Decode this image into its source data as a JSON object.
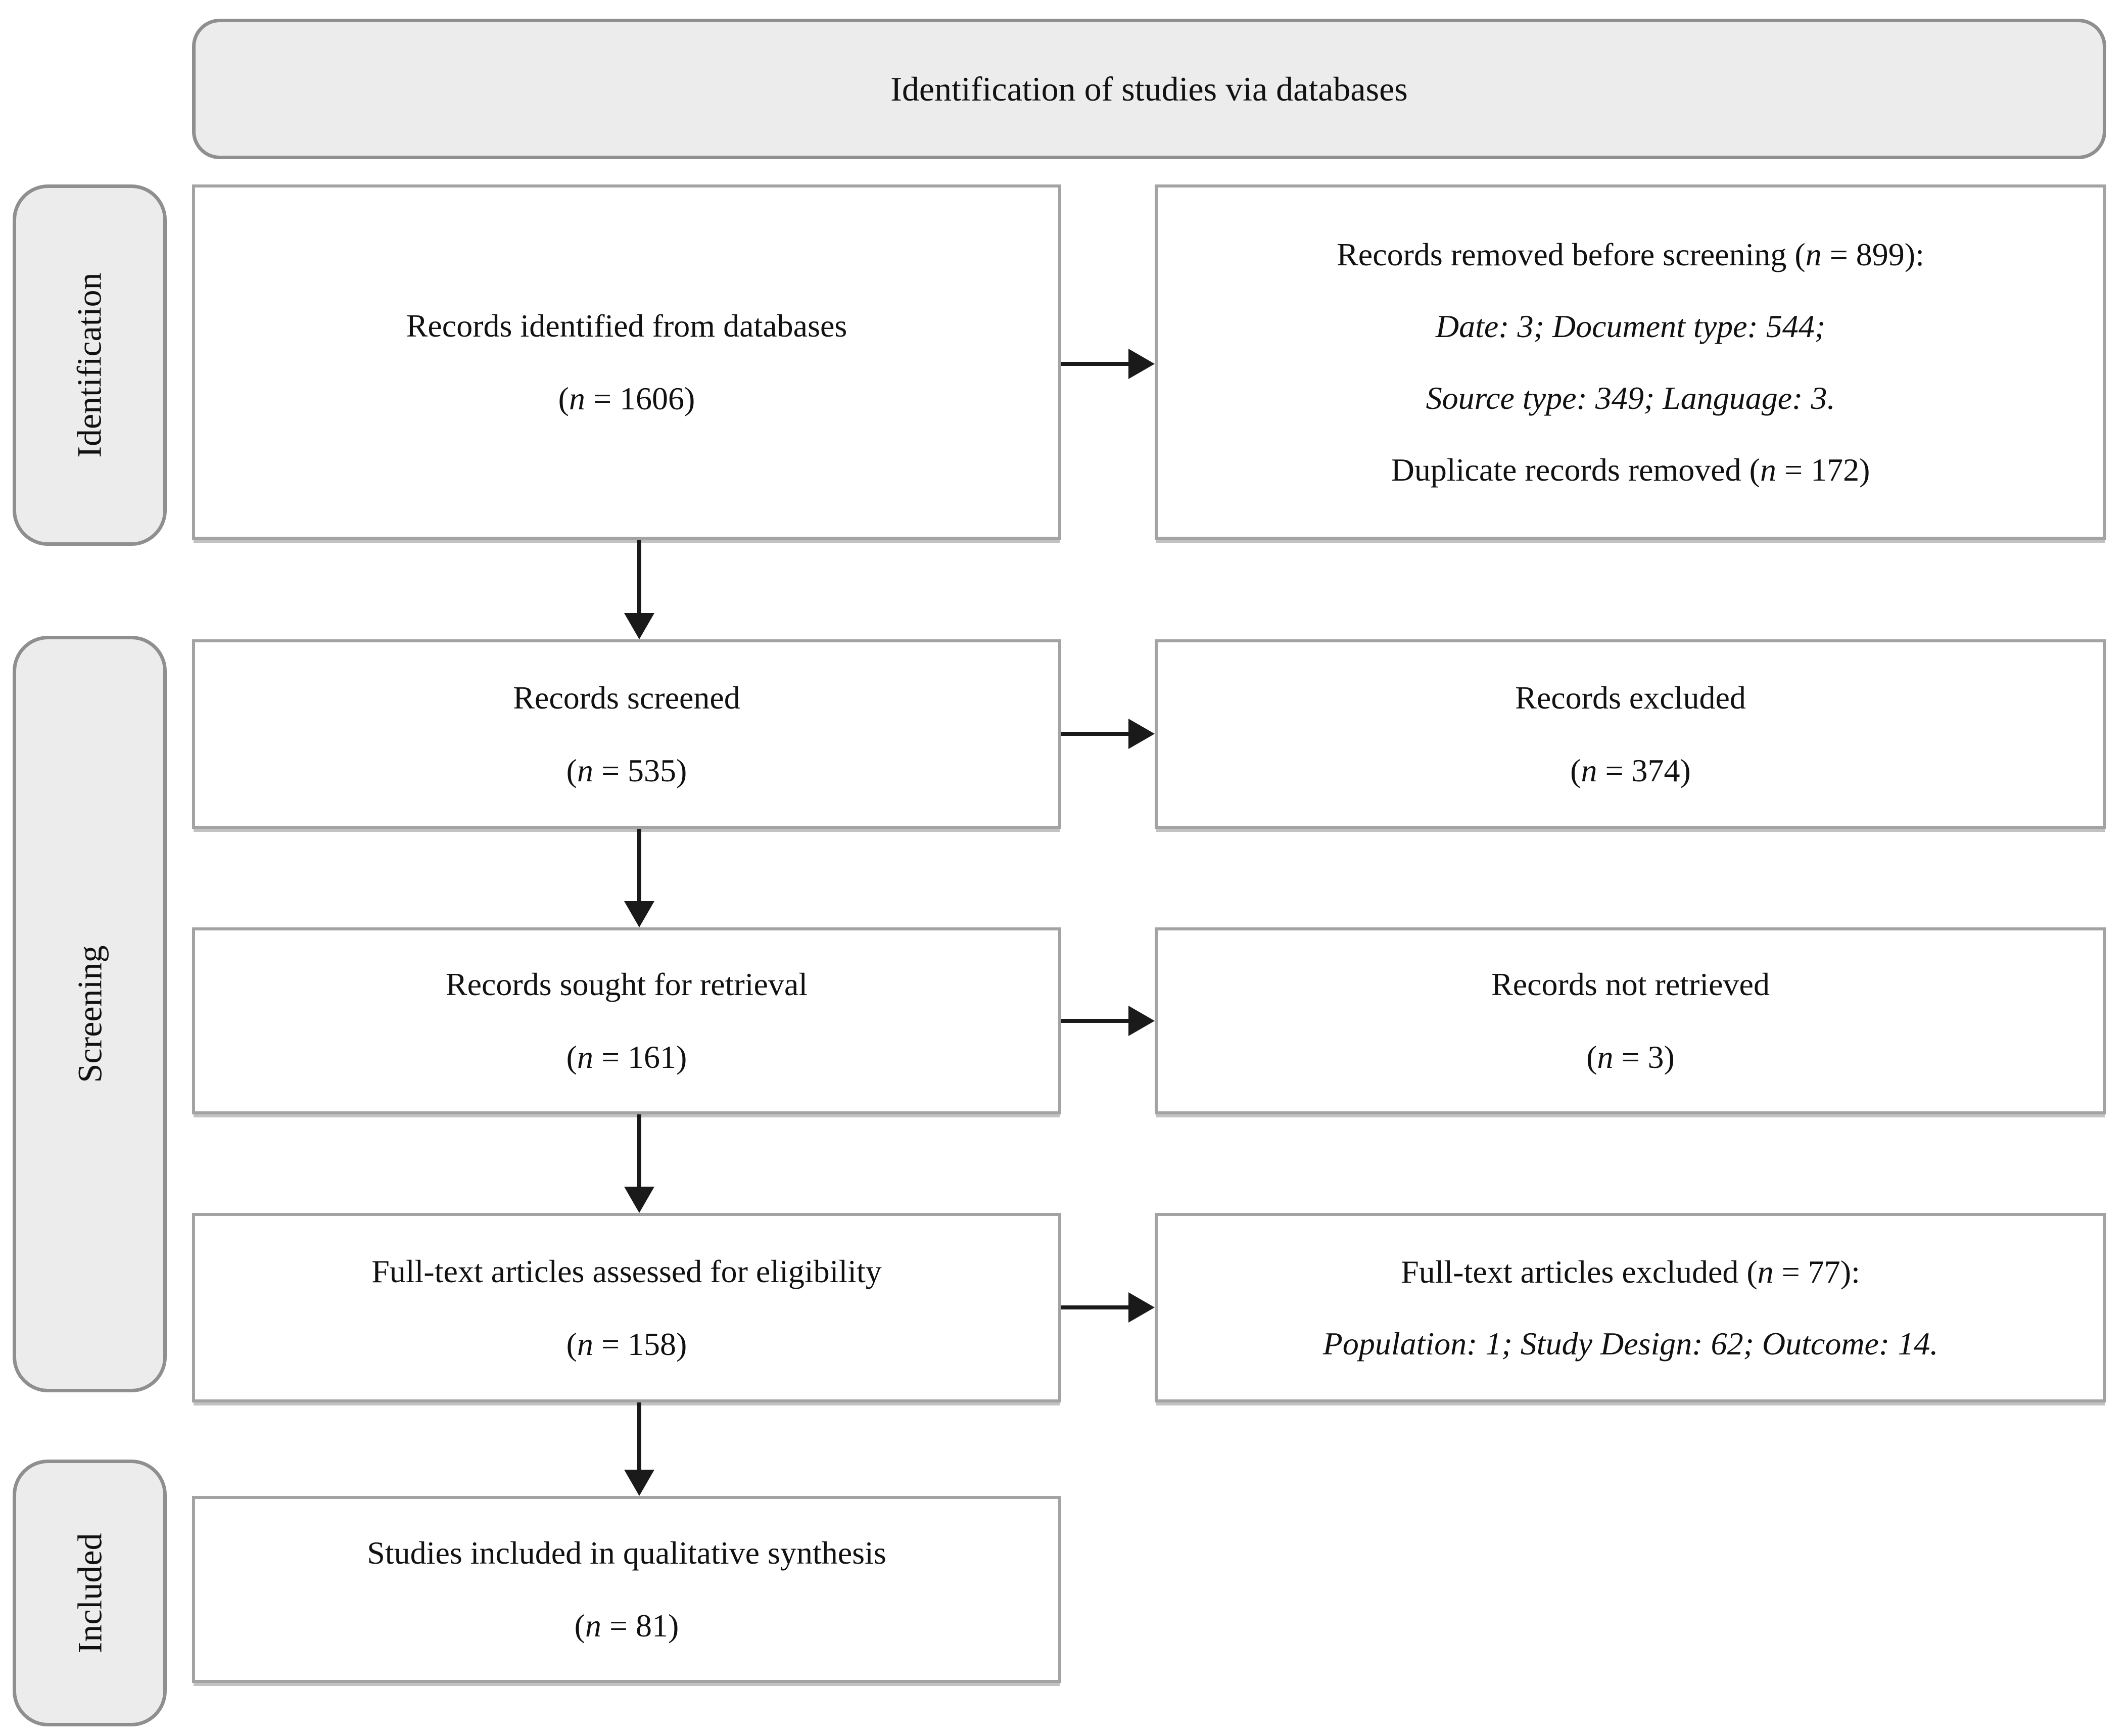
{
  "header": {
    "title": "Identification of studies via databases"
  },
  "stages": [
    {
      "label": "Identification"
    },
    {
      "label": "Screening"
    },
    {
      "label": "Included"
    }
  ],
  "boxes": {
    "identified": {
      "lines": [
        {
          "segments": [
            {
              "text": "Records identified from databases"
            }
          ]
        },
        {
          "segments": [
            {
              "text": "("
            },
            {
              "text": "n",
              "italic": true
            },
            {
              "text": " = 1606)"
            }
          ]
        }
      ]
    },
    "removed": {
      "lines": [
        {
          "segments": [
            {
              "text": "Records removed before screening ("
            },
            {
              "text": "n",
              "italic": true
            },
            {
              "text": " = 899):"
            }
          ]
        },
        {
          "italic": true,
          "segments": [
            {
              "text": "Date: 3; Document type: 544;"
            }
          ]
        },
        {
          "italic": true,
          "segments": [
            {
              "text": "Source type: 349; Language: 3."
            }
          ]
        },
        {
          "segments": [
            {
              "text": "Duplicate records removed ("
            },
            {
              "text": "n",
              "italic": true
            },
            {
              "text": " = 172)"
            }
          ]
        }
      ]
    },
    "screened": {
      "lines": [
        {
          "segments": [
            {
              "text": "Records screened"
            }
          ]
        },
        {
          "segments": [
            {
              "text": "("
            },
            {
              "text": "n",
              "italic": true
            },
            {
              "text": " = 535)"
            }
          ]
        }
      ]
    },
    "excluded": {
      "lines": [
        {
          "segments": [
            {
              "text": "Records excluded"
            }
          ]
        },
        {
          "segments": [
            {
              "text": "("
            },
            {
              "text": "n",
              "italic": true
            },
            {
              "text": " = 374)"
            }
          ]
        }
      ]
    },
    "sought": {
      "lines": [
        {
          "segments": [
            {
              "text": "Records sought for retrieval"
            }
          ]
        },
        {
          "segments": [
            {
              "text": "("
            },
            {
              "text": "n",
              "italic": true
            },
            {
              "text": " = 161)"
            }
          ]
        }
      ]
    },
    "not_retrieved": {
      "lines": [
        {
          "segments": [
            {
              "text": "Records not retrieved"
            }
          ]
        },
        {
          "segments": [
            {
              "text": "("
            },
            {
              "text": "n",
              "italic": true
            },
            {
              "text": " = 3)"
            }
          ]
        }
      ]
    },
    "fulltext_assessed": {
      "lines": [
        {
          "segments": [
            {
              "text": "Full-text articles assessed for eligibility"
            }
          ]
        },
        {
          "segments": [
            {
              "text": "("
            },
            {
              "text": "n",
              "italic": true
            },
            {
              "text": " = 158)"
            }
          ]
        }
      ]
    },
    "fulltext_excluded": {
      "lines": [
        {
          "segments": [
            {
              "text": "Full-text articles excluded ("
            },
            {
              "text": "n",
              "italic": true
            },
            {
              "text": " = 77):"
            }
          ]
        },
        {
          "italic": true,
          "segments": [
            {
              "text": "Population: 1; Study Design: 62; Outcome: 14."
            }
          ]
        }
      ]
    },
    "included_synthesis": {
      "lines": [
        {
          "segments": [
            {
              "text": "Studies included in qualitative synthesis"
            }
          ]
        },
        {
          "segments": [
            {
              "text": "("
            },
            {
              "text": "n",
              "italic": true
            },
            {
              "text": " = 81)"
            }
          ]
        }
      ]
    }
  },
  "colors": {
    "background": "#ffffff",
    "panel_fill": "#ececec",
    "panel_border": "#8f8f8f",
    "box_border": "#a3a3a3",
    "arrow": "#1a1a1a",
    "text": "#111111"
  }
}
